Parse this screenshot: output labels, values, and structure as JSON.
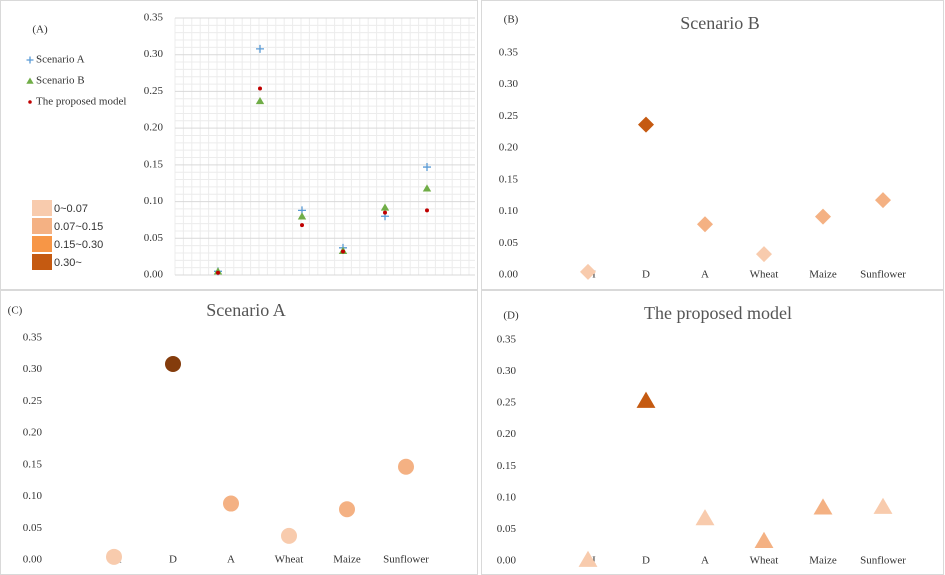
{
  "chart_data": [
    {
      "type": "scatter",
      "panel_label": "(A)",
      "categories": [
        null,
        null,
        null,
        null,
        null,
        null
      ],
      "series": [
        {
          "name": "Scenario A",
          "color": "#5b9bd5",
          "marker": "plus",
          "values": [
            0.005,
            0.308,
            0.088,
            0.037,
            0.08,
            0.147
          ]
        },
        {
          "name": "Scenario B",
          "color": "#70ad47",
          "marker": "triangle",
          "values": [
            0.005,
            0.237,
            0.08,
            0.033,
            0.092,
            0.118
          ]
        },
        {
          "name": "The proposed model",
          "color": "#c00000",
          "marker": "dot",
          "values": [
            0.003,
            0.254,
            0.068,
            0.032,
            0.085,
            0.088
          ]
        }
      ],
      "ylim": [
        0,
        0.35
      ],
      "yticks": [
        {
          "value": 0,
          "label": "0.00"
        },
        0.05,
        {
          "value": 0.1,
          "label": "0.10"
        },
        0.15,
        {
          "value": 0.2,
          "label": "0.20"
        },
        0.25,
        {
          "value": 0.3,
          "label": "0.30"
        },
        0.35
      ],
      "grid": true,
      "color_classes": [
        {
          "label": "0~0.07",
          "color": "#f8cbad"
        },
        {
          "label": "0.07~0.15",
          "color": "#f4b183"
        },
        {
          "label": "0.15~0.30",
          "color": "#f79646"
        },
        {
          "label": "0.30~",
          "color": "#c55a11"
        }
      ]
    },
    {
      "type": "scatter",
      "panel_label": "(B)",
      "title": "Scenario B",
      "marker": "diamond",
      "categories": [
        "I",
        "D",
        "A",
        "Wheat",
        "Maize",
        "Sunflower"
      ],
      "values": [
        0.005,
        0.237,
        0.08,
        0.033,
        0.092,
        0.118
      ],
      "colors": [
        "#f8cbad",
        "#c55a11",
        "#f4b183",
        "#f8cbad",
        "#f4b183",
        "#f4b183"
      ],
      "ylim": [
        0,
        0.35
      ],
      "yticks": [
        {
          "value": 0,
          "label": "0.00"
        },
        0.05,
        {
          "value": 0.1,
          "label": "0.10"
        },
        0.15,
        {
          "value": 0.2,
          "label": "0.20"
        },
        0.25,
        {
          "value": 0.3,
          "label": "0.30"
        },
        0.35
      ],
      "grid": false
    },
    {
      "type": "scatter",
      "panel_label": "(C)",
      "title": "Scenario A",
      "marker": "circle",
      "categories": [
        "I",
        "D",
        "A",
        "Wheat",
        "Maize",
        "Sunflower"
      ],
      "values": [
        0.005,
        0.309,
        0.089,
        0.038,
        0.08,
        0.147
      ],
      "colors": [
        "#f8cbad",
        "#843c0c",
        "#f4b183",
        "#f8cbad",
        "#f4b183",
        "#f4b183"
      ],
      "ylim": [
        0,
        0.35
      ],
      "yticks": [
        {
          "value": 0,
          "label": "0.00"
        },
        0.05,
        {
          "value": 0.1,
          "label": "0.10"
        },
        0.15,
        {
          "value": 0.2,
          "label": "0.20"
        },
        0.25,
        {
          "value": 0.3,
          "label": "0.30"
        },
        0.35
      ],
      "grid": false
    },
    {
      "type": "scatter",
      "panel_label": "(D)",
      "title": "The proposed model",
      "marker": "triangle",
      "categories": [
        "I",
        "D",
        "A",
        "Wheat",
        "Maize",
        "Sunflower"
      ],
      "values": [
        0.002,
        0.254,
        0.068,
        0.032,
        0.085,
        0.086
      ],
      "colors": [
        "#f8cbad",
        "#c55a11",
        "#f8cbad",
        "#f4b183",
        "#f4b183",
        "#f8cbad"
      ],
      "ylim": [
        0,
        0.35
      ],
      "yticks": [
        {
          "value": 0,
          "label": "0.00"
        },
        0.05,
        {
          "value": 0.1,
          "label": "0.10"
        },
        0.15,
        {
          "value": 0.2,
          "label": "0.20"
        },
        0.25,
        {
          "value": 0.3,
          "label": "0.30"
        },
        0.35
      ],
      "grid": false
    }
  ]
}
